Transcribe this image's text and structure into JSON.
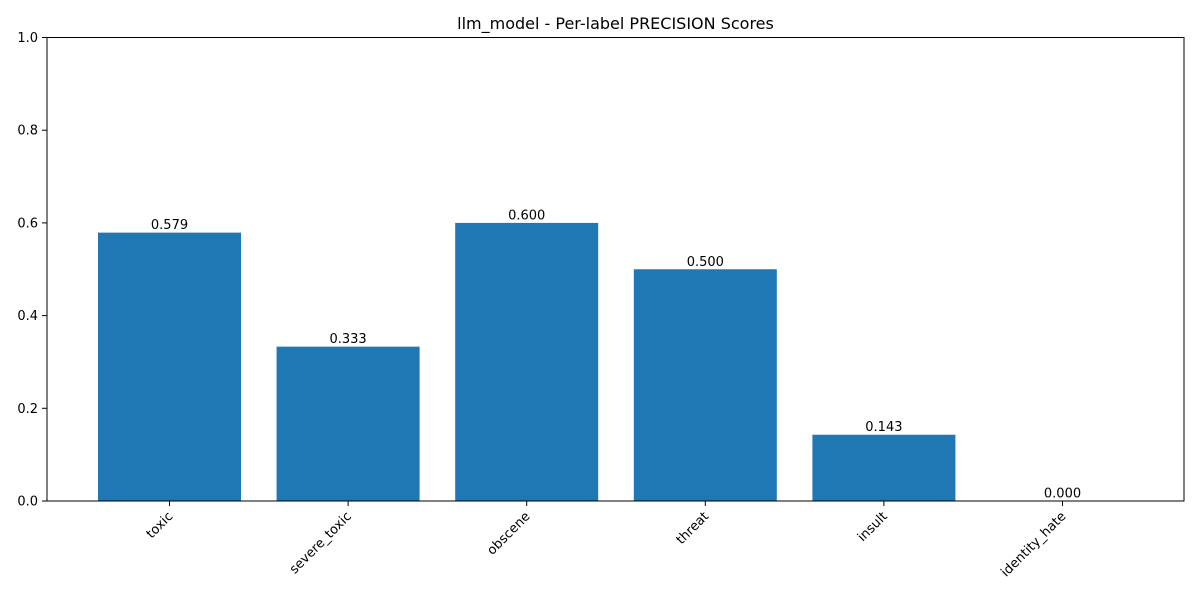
{
  "chart_data": {
    "type": "bar",
    "title": "llm_model - Per-label PRECISION Scores",
    "xlabel": "",
    "ylabel": "",
    "categories": [
      "toxic",
      "severe_toxic",
      "obscene",
      "threat",
      "insult",
      "identity_hate"
    ],
    "values": [
      0.579,
      0.333,
      0.6,
      0.5,
      0.143,
      0.0
    ],
    "value_labels": [
      "0.579",
      "0.333",
      "0.600",
      "0.500",
      "0.143",
      "0.000"
    ],
    "ylim": [
      0,
      1
    ],
    "yticks": [
      0.0,
      0.2,
      0.4,
      0.6,
      0.8,
      1.0
    ],
    "ytick_labels": [
      "0.0",
      "0.2",
      "0.4",
      "0.6",
      "0.8",
      "1.0"
    ],
    "grid": false,
    "bar_color": "#1f77b4"
  }
}
